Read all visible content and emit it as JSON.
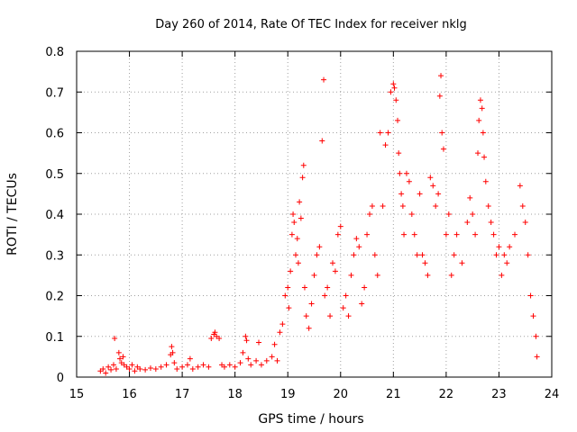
{
  "chart_data": {
    "type": "scatter",
    "title": "Day 260 of 2014, Rate Of TEC Index for receiver nklg",
    "xlabel": "GPS time / hours",
    "ylabel": "ROTI / TECUs",
    "xlim": [
      15,
      24
    ],
    "ylim": [
      0,
      0.8
    ],
    "xticks": [
      "15",
      "16",
      "17",
      "18",
      "19",
      "20",
      "21",
      "22",
      "23",
      "24"
    ],
    "yticks": [
      "0",
      "0.1",
      "0.2",
      "0.3",
      "0.4",
      "0.5",
      "0.6",
      "0.7",
      "0.8"
    ],
    "grid": true,
    "marker": "+",
    "color": "#ff0000",
    "series": [
      {
        "name": "ROTI",
        "points": [
          [
            15.45,
            0.015
          ],
          [
            15.5,
            0.02
          ],
          [
            15.55,
            0.01
          ],
          [
            15.6,
            0.025
          ],
          [
            15.65,
            0.018
          ],
          [
            15.7,
            0.03
          ],
          [
            15.72,
            0.095
          ],
          [
            15.75,
            0.02
          ],
          [
            15.8,
            0.06
          ],
          [
            15.82,
            0.045
          ],
          [
            15.85,
            0.035
          ],
          [
            15.88,
            0.05
          ],
          [
            15.9,
            0.03
          ],
          [
            15.95,
            0.025
          ],
          [
            16.0,
            0.02
          ],
          [
            16.05,
            0.03
          ],
          [
            16.1,
            0.015
          ],
          [
            16.15,
            0.025
          ],
          [
            16.2,
            0.02
          ],
          [
            16.3,
            0.018
          ],
          [
            16.4,
            0.022
          ],
          [
            16.5,
            0.02
          ],
          [
            16.6,
            0.025
          ],
          [
            16.7,
            0.03
          ],
          [
            16.78,
            0.055
          ],
          [
            16.8,
            0.075
          ],
          [
            16.82,
            0.06
          ],
          [
            16.85,
            0.035
          ],
          [
            16.9,
            0.02
          ],
          [
            17.0,
            0.025
          ],
          [
            17.1,
            0.03
          ],
          [
            17.15,
            0.045
          ],
          [
            17.2,
            0.02
          ],
          [
            17.3,
            0.025
          ],
          [
            17.4,
            0.03
          ],
          [
            17.5,
            0.025
          ],
          [
            17.55,
            0.095
          ],
          [
            17.6,
            0.105
          ],
          [
            17.62,
            0.11
          ],
          [
            17.65,
            0.1
          ],
          [
            17.7,
            0.095
          ],
          [
            17.75,
            0.03
          ],
          [
            17.8,
            0.025
          ],
          [
            17.9,
            0.03
          ],
          [
            18.0,
            0.025
          ],
          [
            18.1,
            0.035
          ],
          [
            18.15,
            0.06
          ],
          [
            18.2,
            0.1
          ],
          [
            18.22,
            0.09
          ],
          [
            18.25,
            0.045
          ],
          [
            18.3,
            0.03
          ],
          [
            18.4,
            0.04
          ],
          [
            18.45,
            0.085
          ],
          [
            18.5,
            0.03
          ],
          [
            18.6,
            0.04
          ],
          [
            18.7,
            0.05
          ],
          [
            18.75,
            0.08
          ],
          [
            18.8,
            0.04
          ],
          [
            18.85,
            0.11
          ],
          [
            18.9,
            0.13
          ],
          [
            18.95,
            0.2
          ],
          [
            19.0,
            0.22
          ],
          [
            19.02,
            0.17
          ],
          [
            19.05,
            0.26
          ],
          [
            19.08,
            0.35
          ],
          [
            19.1,
            0.4
          ],
          [
            19.12,
            0.38
          ],
          [
            19.15,
            0.3
          ],
          [
            19.18,
            0.34
          ],
          [
            19.2,
            0.28
          ],
          [
            19.22,
            0.43
          ],
          [
            19.25,
            0.39
          ],
          [
            19.28,
            0.49
          ],
          [
            19.3,
            0.52
          ],
          [
            19.32,
            0.22
          ],
          [
            19.35,
            0.15
          ],
          [
            19.4,
            0.12
          ],
          [
            19.45,
            0.18
          ],
          [
            19.5,
            0.25
          ],
          [
            19.55,
            0.3
          ],
          [
            19.6,
            0.32
          ],
          [
            19.65,
            0.58
          ],
          [
            19.68,
            0.73
          ],
          [
            19.7,
            0.2
          ],
          [
            19.75,
            0.22
          ],
          [
            19.8,
            0.15
          ],
          [
            19.85,
            0.28
          ],
          [
            19.9,
            0.26
          ],
          [
            19.95,
            0.35
          ],
          [
            20.0,
            0.37
          ],
          [
            20.05,
            0.17
          ],
          [
            20.1,
            0.2
          ],
          [
            20.15,
            0.15
          ],
          [
            20.2,
            0.25
          ],
          [
            20.25,
            0.3
          ],
          [
            20.3,
            0.34
          ],
          [
            20.35,
            0.32
          ],
          [
            20.4,
            0.18
          ],
          [
            20.45,
            0.22
          ],
          [
            20.5,
            0.35
          ],
          [
            20.55,
            0.4
          ],
          [
            20.6,
            0.42
          ],
          [
            20.65,
            0.3
          ],
          [
            20.7,
            0.25
          ],
          [
            20.75,
            0.6
          ],
          [
            20.8,
            0.42
          ],
          [
            20.85,
            0.57
          ],
          [
            20.9,
            0.6
          ],
          [
            20.95,
            0.7
          ],
          [
            21.0,
            0.72
          ],
          [
            21.02,
            0.71
          ],
          [
            21.05,
            0.68
          ],
          [
            21.08,
            0.63
          ],
          [
            21.1,
            0.55
          ],
          [
            21.12,
            0.5
          ],
          [
            21.15,
            0.45
          ],
          [
            21.18,
            0.42
          ],
          [
            21.2,
            0.35
          ],
          [
            21.25,
            0.5
          ],
          [
            21.3,
            0.48
          ],
          [
            21.35,
            0.4
          ],
          [
            21.4,
            0.35
          ],
          [
            21.45,
            0.3
          ],
          [
            21.5,
            0.45
          ],
          [
            21.55,
            0.3
          ],
          [
            21.6,
            0.28
          ],
          [
            21.65,
            0.25
          ],
          [
            21.7,
            0.49
          ],
          [
            21.75,
            0.47
          ],
          [
            21.8,
            0.42
          ],
          [
            21.85,
            0.45
          ],
          [
            21.88,
            0.69
          ],
          [
            21.9,
            0.74
          ],
          [
            21.92,
            0.6
          ],
          [
            21.95,
            0.56
          ],
          [
            22.0,
            0.35
          ],
          [
            22.05,
            0.4
          ],
          [
            22.1,
            0.25
          ],
          [
            22.15,
            0.3
          ],
          [
            22.2,
            0.35
          ],
          [
            22.3,
            0.28
          ],
          [
            22.4,
            0.38
          ],
          [
            22.45,
            0.44
          ],
          [
            22.5,
            0.4
          ],
          [
            22.55,
            0.35
          ],
          [
            22.6,
            0.55
          ],
          [
            22.62,
            0.63
          ],
          [
            22.65,
            0.68
          ],
          [
            22.68,
            0.66
          ],
          [
            22.7,
            0.6
          ],
          [
            22.72,
            0.54
          ],
          [
            22.75,
            0.48
          ],
          [
            22.8,
            0.42
          ],
          [
            22.85,
            0.38
          ],
          [
            22.9,
            0.35
          ],
          [
            22.95,
            0.3
          ],
          [
            23.0,
            0.32
          ],
          [
            23.05,
            0.25
          ],
          [
            23.1,
            0.3
          ],
          [
            23.15,
            0.28
          ],
          [
            23.2,
            0.32
          ],
          [
            23.3,
            0.35
          ],
          [
            23.4,
            0.47
          ],
          [
            23.45,
            0.42
          ],
          [
            23.5,
            0.38
          ],
          [
            23.55,
            0.3
          ],
          [
            23.6,
            0.2
          ],
          [
            23.65,
            0.15
          ],
          [
            23.7,
            0.1
          ],
          [
            23.72,
            0.05
          ]
        ]
      }
    ]
  }
}
